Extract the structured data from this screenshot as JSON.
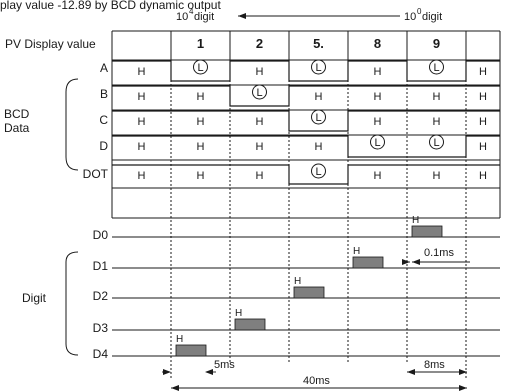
{
  "header": {
    "title_fragment": "play value   -12.89 by BCD dynamic output",
    "hi_digit": "10",
    "hi_exp": "4",
    "hi_suffix": " digit",
    "lo_digit": "10",
    "lo_exp": "0",
    "lo_suffix": " digit"
  },
  "row_label_pv": "PV Display value",
  "columns": [
    "",
    "1",
    "2",
    "5.",
    "8",
    "9",
    ""
  ],
  "bcd_group_label": [
    "BCD",
    "Data"
  ],
  "digit_group_label": "Digit",
  "data_rows": [
    {
      "name": "A",
      "levels": [
        "H",
        "L",
        "H",
        "L",
        "H",
        "L",
        "H"
      ]
    },
    {
      "name": "B",
      "levels": [
        "H",
        "H",
        "L",
        "H",
        "H",
        "H",
        "H"
      ]
    },
    {
      "name": "C",
      "levels": [
        "H",
        "H",
        "H",
        "L",
        "H",
        "H",
        "H"
      ]
    },
    {
      "name": "D",
      "levels": [
        "H",
        "H",
        "H",
        "H",
        "L",
        "L",
        "H"
      ]
    },
    {
      "name": "DOT",
      "levels": [
        "H",
        "H",
        "H",
        "L",
        "H",
        "H",
        "H"
      ]
    }
  ],
  "high_letter": "H",
  "low_letter": "L",
  "digit_rows": [
    {
      "name": "D0",
      "active": 5
    },
    {
      "name": "D1",
      "active": 4
    },
    {
      "name": "D2",
      "active": 3
    },
    {
      "name": "D3",
      "active": 2
    },
    {
      "name": "D4",
      "active": 1
    }
  ],
  "timing": {
    "pulse_label": "0.1ms",
    "gap_label": "5ms",
    "cycle_label": "40ms",
    "period_label": "8ms"
  }
}
